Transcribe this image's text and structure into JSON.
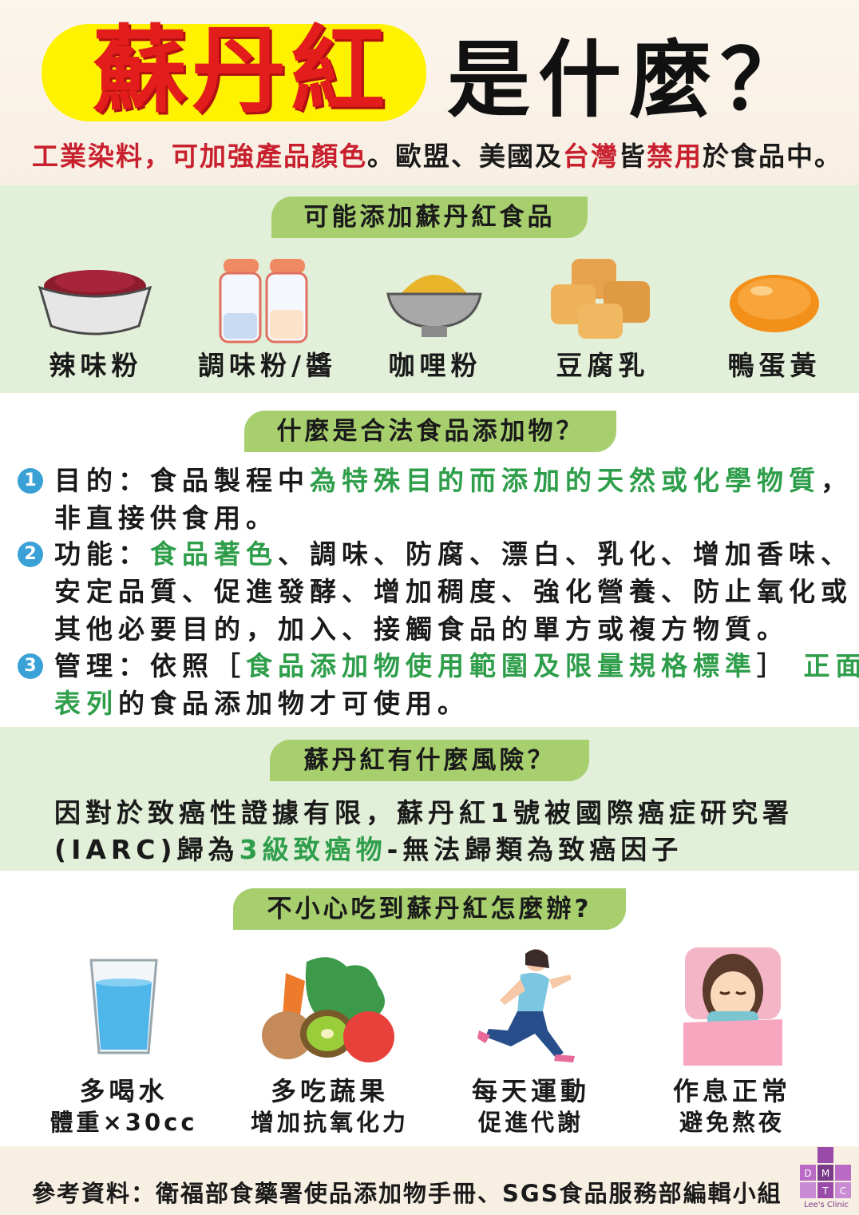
{
  "header": {
    "title_main": "蘇丹紅",
    "title_sub": "是什麼？",
    "subtitle_a": "工業染料，可加強產品顏色",
    "subtitle_b": "。歐盟、美國及",
    "subtitle_c": "台灣",
    "subtitle_d": "皆",
    "subtitle_e": "禁用",
    "subtitle_f": "於食品中。"
  },
  "foods": {
    "heading": "可能添加蘇丹紅食品",
    "items": [
      "辣味粉",
      "調味粉/醬",
      "咖哩粉",
      "豆腐乳",
      "鴨蛋黃"
    ]
  },
  "legal": {
    "heading": "什麼是合法食品添加物？",
    "items": [
      {
        "num": "1",
        "line1_a": "目的：食品製程中",
        "line1_b": "為特殊目的而添加的天然或化學物質",
        "line1_c": "，",
        "line2": "非直接供食用。"
      },
      {
        "num": "2",
        "line1_a": "功能：",
        "line1_b": "食品著色",
        "line1_c": "、調味、防腐、漂白、乳化、增加香味、",
        "line2": "安定品質、促進發酵、增加稠度、強化營養、防止氧化或",
        "line3": "其他必要目的，加入、接觸食品的單方或複方物質。"
      },
      {
        "num": "3",
        "line1_a": "管理：依照［",
        "line1_b": "食品添加物使用範圍及限量規格標準",
        "line1_c": "］",
        "line1_d": "正面",
        "line2_a": "表列",
        "line2_b": "的食品添加物才可使用。"
      }
    ]
  },
  "risk": {
    "heading": "蘇丹紅有什麼風險？",
    "line1": "因對於致癌性證據有限，蘇丹紅1號被國際癌症研究署",
    "line2_a": "(IARC)歸為",
    "line2_b": "3級致癌物",
    "line2_c": "-無法歸類為致癌因子"
  },
  "tips": {
    "heading": "不小心吃到蘇丹紅怎麼辦?",
    "items": [
      {
        "main": "多喝水",
        "sub": "體重×30cc"
      },
      {
        "main": "多吃蔬果",
        "sub": "增加抗氧化力"
      },
      {
        "main": "每天運動",
        "sub": "促進代謝"
      },
      {
        "main": "作息正常",
        "sub": "避免熬夜"
      }
    ]
  },
  "footer": {
    "reference": "參考資料：衛福部食藥署使品添加物手冊、SGS食品服務部編輯小組",
    "logo_letters": [
      "D",
      "M",
      "T",
      "C"
    ],
    "logo_caption": "Lee's Clinic"
  },
  "colors": {
    "title_red": "#e31d1c",
    "highlight_yellow": "#fff200",
    "accent_green": "#2e9e4a",
    "pill_green": "#a7cf6e",
    "band_green": "#e2efd9",
    "number_blue": "#3aa1d6"
  }
}
